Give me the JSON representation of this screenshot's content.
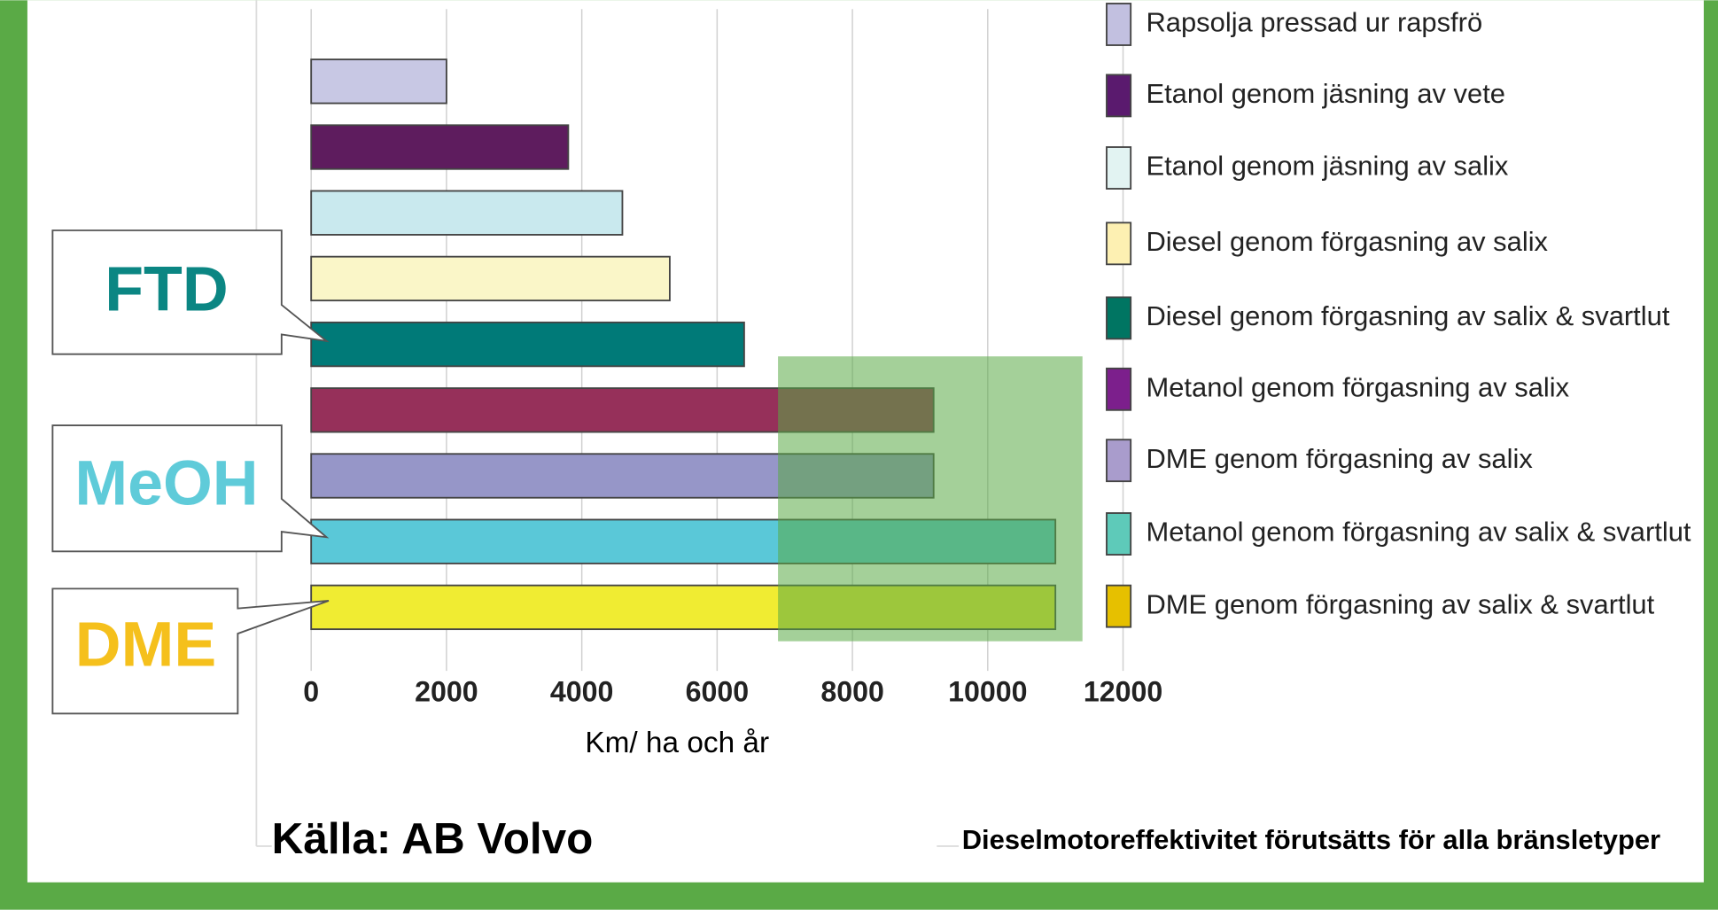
{
  "chart_data": {
    "type": "bar",
    "orientation": "horizontal",
    "categories": [
      "Rapsolja pressad ur rapsfrö",
      "Etanol genom jäsning av vete",
      "Etanol genom jäsning av salix",
      "Diesel genom förgasning av salix",
      "Diesel genom förgasning av salix & svartlut",
      "Metanol genom förgasning av salix",
      "DME genom förgasning av salix",
      "Metanol genom förgasning av salix & svartlut",
      "DME genom förgasning av salix & svartlut"
    ],
    "values": [
      2000,
      3800,
      4600,
      5300,
      6400,
      9200,
      9200,
      11000,
      11000
    ],
    "colors": [
      "#c8c8e4",
      "#5e1c5e",
      "#c9e9ee",
      "#faf6c8",
      "#007a78",
      "#96305a",
      "#9696c8",
      "#5ac8d8",
      "#f0ec32"
    ],
    "legend_colors": [
      "#c2c0e0",
      "#5a1a6e",
      "#e2f3f2",
      "#fdf0b2",
      "#007562",
      "#7c1f8c",
      "#a99ccc",
      "#5ecab9",
      "#e6c000"
    ],
    "xlim": [
      0,
      12000
    ],
    "xticks": [
      0,
      2000,
      4000,
      6000,
      8000,
      10000,
      12000
    ],
    "grid": true,
    "highlight_xrange": [
      6900,
      11400
    ],
    "x_label": "Km/ ha och år",
    "annotations": [
      {
        "text": "FTD",
        "color": "#0b8683"
      },
      {
        "text": "MeOH",
        "color": "#5fcbd9"
      },
      {
        "text": "DME",
        "color": "#f5c01c"
      }
    ],
    "source": "Källa: AB Volvo",
    "note": "Dieselmotoreffektivitet förutsätts för alla bränsletyper"
  }
}
